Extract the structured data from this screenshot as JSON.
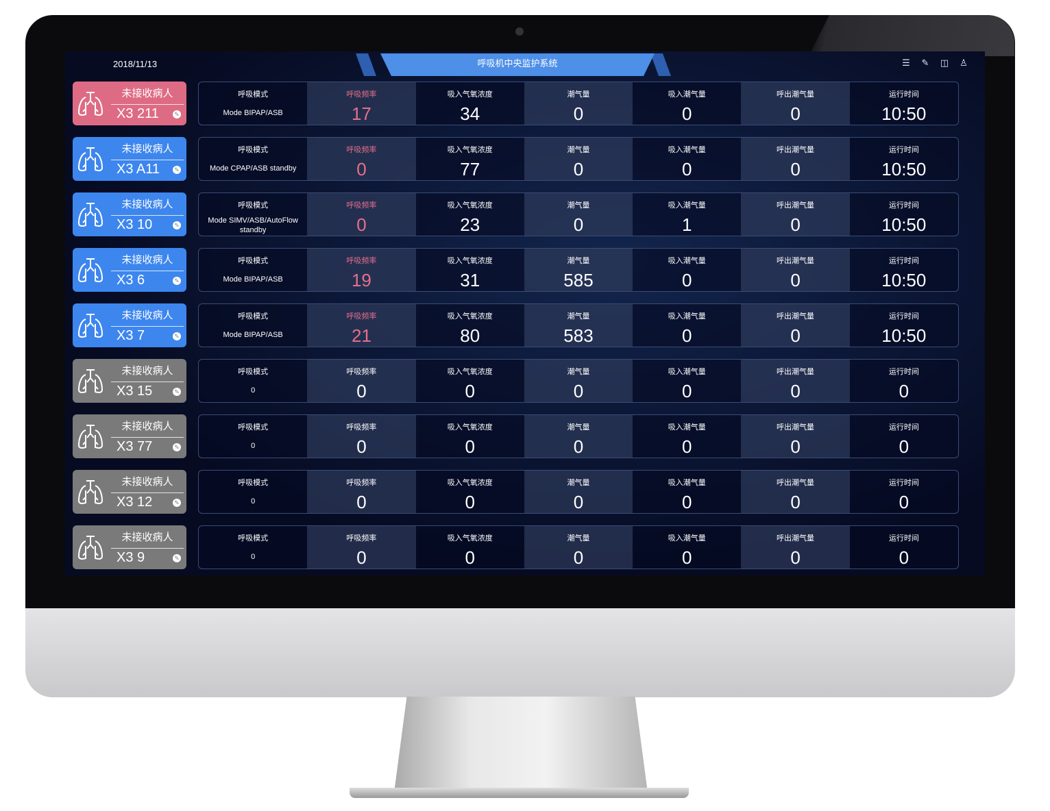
{
  "header": {
    "date": "2018/11/13",
    "title": "呼吸机中央监护系统",
    "icons": [
      "menu-icon",
      "edit-icon",
      "layout-icon",
      "user-icon"
    ]
  },
  "labels": [
    "呼吸模式",
    "呼吸频率",
    "吸入气氧浓度",
    "潮气量",
    "吸入潮气量",
    "呼出潮气量",
    "运行时间"
  ],
  "colors": {
    "alarm": "#de6b84",
    "active": "#3d86ee",
    "offline": "#7a7a7a",
    "rate_highlight": "#e66f8c"
  },
  "rows": [
    {
      "status": "未接收病人",
      "bed": "X3 211",
      "state": "red",
      "mode": "Mode BIPAP/ASB",
      "rate": "17",
      "fio2": "34",
      "vt": "0",
      "vti": "0",
      "vte": "0",
      "runtime": "10:50"
    },
    {
      "status": "未接收病人",
      "bed": "X3 A11",
      "state": "blue",
      "mode": "Mode CPAP/ASB standby",
      "rate": "0",
      "fio2": "77",
      "vt": "0",
      "vti": "0",
      "vte": "0",
      "runtime": "10:50"
    },
    {
      "status": "未接收病人",
      "bed": "X3 10",
      "state": "blue",
      "mode": "Mode SIMV/ASB/AutoFlow standby",
      "rate": "0",
      "fio2": "23",
      "vt": "0",
      "vti": "1",
      "vte": "0",
      "runtime": "10:50"
    },
    {
      "status": "未接收病人",
      "bed": "X3 6",
      "state": "blue",
      "mode": "Mode BIPAP/ASB",
      "rate": "19",
      "fio2": "31",
      "vt": "585",
      "vti": "0",
      "vte": "0",
      "runtime": "10:50"
    },
    {
      "status": "未接收病人",
      "bed": "X3 7",
      "state": "blue",
      "mode": "Mode BIPAP/ASB",
      "rate": "21",
      "fio2": "80",
      "vt": "583",
      "vti": "0",
      "vte": "0",
      "runtime": "10:50"
    },
    {
      "status": "未接收病人",
      "bed": "X3 15",
      "state": "gray",
      "mode": "0",
      "rate": "0",
      "fio2": "0",
      "vt": "0",
      "vti": "0",
      "vte": "0",
      "runtime": "0"
    },
    {
      "status": "未接收病人",
      "bed": "X3 77",
      "state": "gray",
      "mode": "0",
      "rate": "0",
      "fio2": "0",
      "vt": "0",
      "vti": "0",
      "vte": "0",
      "runtime": "0"
    },
    {
      "status": "未接收病人",
      "bed": "X3 12",
      "state": "gray",
      "mode": "0",
      "rate": "0",
      "fio2": "0",
      "vt": "0",
      "vti": "0",
      "vte": "0",
      "runtime": "0"
    },
    {
      "status": "未接收病人",
      "bed": "X3 9",
      "state": "gray",
      "mode": "0",
      "rate": "0",
      "fio2": "0",
      "vt": "0",
      "vti": "0",
      "vte": "0",
      "runtime": "0"
    }
  ]
}
